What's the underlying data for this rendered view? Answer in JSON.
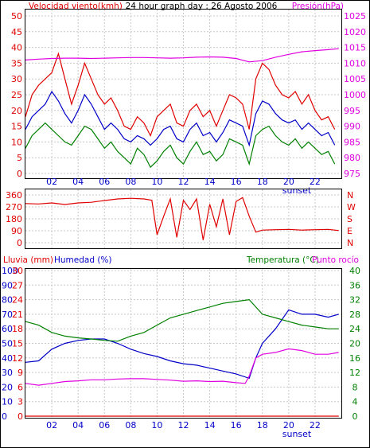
{
  "chart_data": [
    {
      "type": "line",
      "header": {
        "left": "Velocidad viento(kmh)",
        "center": "24 hour graph day : 26 Agosto 2006",
        "right": "Presión(hPa)"
      },
      "left_axis": {
        "ticks": [
          "0",
          "5",
          "10",
          "15",
          "20",
          "25",
          "30",
          "35",
          "40",
          "45",
          "50"
        ],
        "range": [
          0,
          50
        ]
      },
      "right_axis": {
        "ticks": [
          "975",
          "980",
          "985",
          "990",
          "995",
          "1000",
          "1005",
          "1010",
          "1015",
          "1020",
          "1025"
        ],
        "range": [
          975,
          1025
        ]
      },
      "x_ticks": [
        "02",
        "04",
        "06",
        "08",
        "10",
        "12",
        "14",
        "16",
        "18",
        "20",
        "22"
      ],
      "x_annotation": "sunset",
      "x_range_hours": [
        0,
        24
      ],
      "colors": {
        "gust": "#e00000",
        "speed": "#0000c8",
        "min": "#008000",
        "pressure": "#e000e0",
        "grid": "#c8c8c8",
        "frame": "#000000"
      },
      "series": [
        {
          "key": "gust",
          "axis": "left",
          "x": [
            0,
            0.5,
            1,
            1.5,
            2,
            2.5,
            3,
            3.5,
            4,
            4.5,
            5,
            5.5,
            6,
            6.5,
            7,
            7.5,
            8,
            8.5,
            9,
            9.5,
            10,
            10.5,
            11,
            11.5,
            12,
            12.5,
            13,
            13.5,
            14,
            14.5,
            15,
            15.5,
            16,
            16.5,
            17,
            17.5,
            18,
            18.5,
            19,
            19.5,
            20,
            20.5,
            21,
            21.5,
            22,
            22.5,
            23,
            23.5
          ],
          "values": [
            18,
            25,
            28,
            30,
            32,
            38,
            30,
            22,
            28,
            35,
            30,
            25,
            22,
            24,
            20,
            15,
            14,
            18,
            16,
            12,
            18,
            20,
            22,
            16,
            15,
            20,
            22,
            18,
            20,
            15,
            20,
            25,
            24,
            22,
            14,
            30,
            35,
            33,
            28,
            25,
            24,
            26,
            22,
            25,
            20,
            17,
            18,
            14
          ]
        },
        {
          "key": "speed",
          "axis": "left",
          "x": [
            0,
            0.5,
            1,
            1.5,
            2,
            2.5,
            3,
            3.5,
            4,
            4.5,
            5,
            5.5,
            6,
            6.5,
            7,
            7.5,
            8,
            8.5,
            9,
            9.5,
            10,
            10.5,
            11,
            11.5,
            12,
            12.5,
            13,
            13.5,
            14,
            14.5,
            15,
            15.5,
            16,
            16.5,
            17,
            17.5,
            18,
            18.5,
            19,
            19.5,
            20,
            20.5,
            21,
            21.5,
            22,
            22.5,
            23,
            23.5
          ],
          "values": [
            14,
            18,
            20,
            22,
            26,
            23,
            19,
            16,
            20,
            25,
            22,
            18,
            14,
            16,
            14,
            11,
            10,
            12,
            11,
            9,
            11,
            14,
            15,
            11,
            10,
            14,
            16,
            12,
            13,
            10,
            13,
            17,
            16,
            15,
            9,
            19,
            23,
            22,
            19,
            17,
            16,
            17,
            14,
            16,
            14,
            12,
            13,
            9
          ]
        },
        {
          "key": "min",
          "axis": "left",
          "x": [
            0,
            0.5,
            1,
            1.5,
            2,
            2.5,
            3,
            3.5,
            4,
            4.5,
            5,
            5.5,
            6,
            6.5,
            7,
            7.5,
            8,
            8.5,
            9,
            9.5,
            10,
            10.5,
            11,
            11.5,
            12,
            12.5,
            13,
            13.5,
            14,
            14.5,
            15,
            15.5,
            16,
            16.5,
            17,
            17.5,
            18,
            18.5,
            19,
            19.5,
            20,
            20.5,
            21,
            21.5,
            22,
            22.5,
            23,
            23.5
          ],
          "values": [
            8,
            12,
            14,
            16,
            14,
            12,
            10,
            9,
            12,
            15,
            14,
            11,
            8,
            10,
            7,
            5,
            3,
            8,
            6,
            2,
            4,
            7,
            9,
            5,
            3,
            7,
            10,
            6,
            7,
            4,
            6,
            11,
            10,
            9,
            3,
            12,
            14,
            15,
            12,
            10,
            9,
            11,
            8,
            10,
            8,
            6,
            7,
            3
          ]
        },
        {
          "key": "pressure",
          "axis": "right",
          "x": [
            0,
            1,
            2,
            3,
            4,
            5,
            6,
            7,
            8,
            9,
            10,
            11,
            12,
            13,
            14,
            15,
            16,
            17,
            18,
            19,
            20,
            21,
            22,
            23,
            23.8
          ],
          "values": [
            1011,
            1011.3,
            1011.5,
            1011.6,
            1011.6,
            1011.5,
            1011.6,
            1011.7,
            1011.8,
            1011.8,
            1011.7,
            1011.6,
            1011.7,
            1011.9,
            1012,
            1011.9,
            1011.5,
            1010.4,
            1010.8,
            1011.9,
            1012.8,
            1013.6,
            1014,
            1014.3,
            1014.6
          ]
        }
      ]
    },
    {
      "type": "line",
      "left_axis": {
        "ticks": [
          "0",
          "90",
          "180",
          "270",
          "360"
        ],
        "range": [
          0,
          360
        ]
      },
      "right_axis": {
        "ticks": [
          "N",
          "W",
          "S",
          "E",
          "N"
        ]
      },
      "colors": {
        "direction": "#e00000"
      },
      "series": [
        {
          "key": "direction",
          "axis": "left",
          "x": [
            0,
            1,
            2,
            3,
            4,
            5,
            6,
            7,
            8,
            9,
            9.6,
            10,
            10.5,
            11,
            11.5,
            12,
            12.5,
            13,
            13.5,
            14,
            14.5,
            15,
            15.5,
            16,
            16.5,
            17,
            17.5,
            18,
            19,
            20,
            21,
            22,
            23,
            23.8
          ],
          "values": [
            295,
            292,
            300,
            288,
            300,
            305,
            318,
            330,
            335,
            330,
            320,
            60,
            200,
            330,
            40,
            320,
            250,
            330,
            20,
            290,
            120,
            330,
            60,
            310,
            340,
            200,
            80,
            95,
            98,
            100,
            95,
            98,
            100,
            92
          ]
        }
      ]
    },
    {
      "type": "line",
      "header": {
        "left_a": "Lluvia (mm)",
        "left_b": "Humedad (%)",
        "right_a": "Temperatura (°C)",
        "right_b": "Punto rocío"
      },
      "humidity_axis": {
        "ticks": [
          "0",
          "10",
          "20",
          "30",
          "40",
          "50",
          "60",
          "70",
          "80",
          "90",
          "100"
        ],
        "range": [
          0,
          100
        ]
      },
      "rain_axis": {
        "ticks": [
          "0",
          "3",
          "6",
          "9",
          "12",
          "15",
          "18",
          "21",
          "24",
          "27",
          "30"
        ],
        "range": [
          0,
          30
        ]
      },
      "temp_axis": {
        "ticks": [
          "0",
          "4",
          "8",
          "12",
          "16",
          "20",
          "24",
          "28",
          "32",
          "36",
          "40"
        ],
        "range": [
          0,
          40
        ]
      },
      "x_ticks": [
        "02",
        "04",
        "06",
        "08",
        "10",
        "12",
        "14",
        "16",
        "18",
        "20",
        "22"
      ],
      "x_annotation": "sunset",
      "colors": {
        "humidity": "#0000c8",
        "temperature": "#008000",
        "dewpoint": "#e000e0",
        "rain": "#e00000"
      },
      "series": [
        {
          "key": "humidity",
          "axis": "humidity",
          "x": [
            0,
            1,
            2,
            3,
            4,
            5,
            6,
            7,
            8,
            9,
            10,
            11,
            12,
            13,
            14,
            15,
            16,
            17,
            17.5,
            18,
            19,
            20,
            21,
            22,
            23,
            23.8
          ],
          "values": [
            37,
            38,
            46,
            50,
            52,
            53,
            53,
            50,
            46,
            43,
            41,
            38,
            36,
            35,
            33,
            31,
            29,
            26,
            40,
            50,
            60,
            73,
            70,
            70,
            68,
            70
          ]
        },
        {
          "key": "temperature",
          "axis": "temp",
          "x": [
            0,
            1,
            2,
            3,
            4,
            5,
            6,
            7,
            8,
            9,
            10,
            11,
            12,
            13,
            14,
            15,
            16,
            17,
            18,
            19,
            20,
            21,
            22,
            23,
            23.8
          ],
          "values": [
            26,
            25,
            23,
            22,
            21.5,
            21.2,
            20.8,
            20.6,
            22,
            23,
            25,
            27,
            28,
            29,
            30,
            31,
            31.5,
            32,
            28,
            27,
            26,
            25,
            24.5,
            24,
            24
          ]
        },
        {
          "key": "dewpoint",
          "axis": "temp",
          "x": [
            0,
            1,
            2,
            3,
            4,
            5,
            6,
            7,
            8,
            9,
            10,
            11,
            12,
            13,
            14,
            15,
            16,
            16.7,
            17,
            17.5,
            18,
            19,
            20,
            21,
            22,
            23,
            23.8
          ],
          "values": [
            9,
            8.5,
            9,
            9.5,
            9.7,
            10,
            10,
            10.2,
            10.3,
            10.3,
            10.1,
            9.9,
            9.6,
            9.7,
            9.5,
            9.6,
            9.2,
            9.0,
            11,
            16,
            17,
            17.5,
            18.5,
            18,
            17,
            17,
            17.5
          ]
        },
        {
          "key": "rain",
          "axis": "rain",
          "x": [
            0,
            23.8
          ],
          "values": [
            0,
            0
          ]
        }
      ]
    }
  ]
}
